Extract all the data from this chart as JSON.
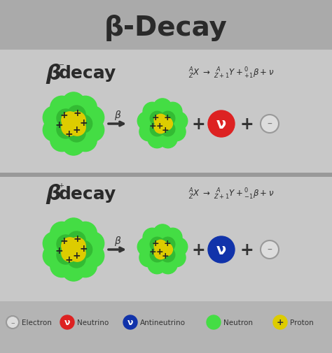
{
  "title": "β-Decay",
  "bg_title": "#aaaaaa",
  "bg_content": "#c8c8c8",
  "bg_divider": "#999999",
  "bg_legend": "#b8b8b8",
  "title_fontsize": 28,
  "section1_beta": "β",
  "section1_sup": "⁻",
  "section1_decay": "decay",
  "section2_beta": "β",
  "section2_sup": "⁺",
  "section2_decay": "decay",
  "arrow_label": "β",
  "neutrino_color": "#dd2222",
  "antineutrino_color": "#1133aa",
  "nucleus_green_outer": "#44dd44",
  "nucleus_green_mid": "#33bb33",
  "nucleus_yellow": "#ddcc00",
  "text_dark": "#333333",
  "text_mid": "#555555",
  "plus_color": "#222222",
  "electron_edge": "#999999",
  "electron_fill": "#dddddd",
  "legend_items": [
    "Electron",
    "Neutrino",
    "Antineutrino",
    "Neutron",
    "Proton"
  ]
}
